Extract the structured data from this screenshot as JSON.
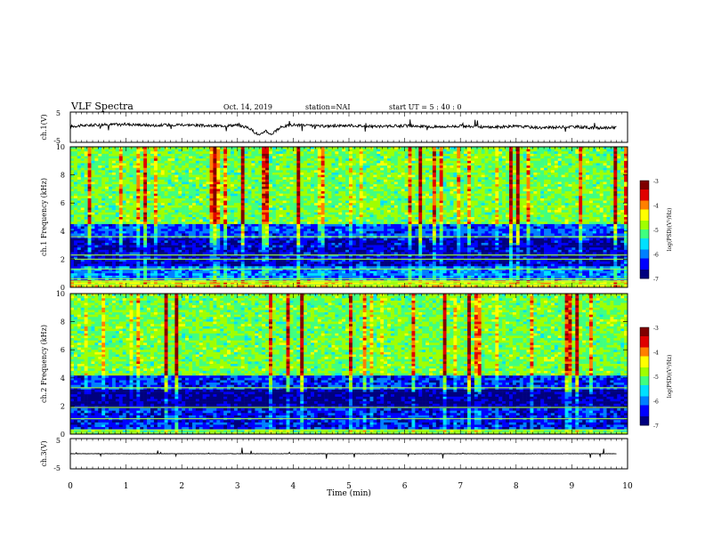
{
  "header": {
    "title": "VLF Spectra",
    "date": "Oct. 14, 2019",
    "station": "station=NAI",
    "start_ut": "start  UT =  5 : 40 : 0"
  },
  "chart_data": [
    {
      "type": "line",
      "panel": "ch1-waveform",
      "ylabel": "ch.1(V)",
      "yticks": [
        "5",
        "-5"
      ],
      "ylim": [
        -5,
        5
      ],
      "x_range_min": [
        0,
        10
      ],
      "series": [
        {
          "x": [
            0,
            0.5,
            1,
            1.5,
            2,
            2.5,
            3,
            3.2,
            3.4,
            3.5,
            3.6,
            3.8,
            4,
            4.5,
            5,
            5.5,
            6,
            6.5,
            7,
            7.5,
            8,
            8.5,
            9,
            9.5,
            9.8
          ],
          "values": [
            0.3,
            0.8,
            1.0,
            0.6,
            0.9,
            0.4,
            0.7,
            -0.2,
            -2.8,
            -1.0,
            -2.4,
            0.2,
            0.8,
            0.3,
            0.6,
            0.2,
            0.5,
            0.1,
            0.4,
            0.0,
            0.3,
            -0.2,
            0.2,
            -0.3,
            0.0
          ]
        }
      ]
    },
    {
      "type": "heatmap",
      "panel": "ch1-spectrogram",
      "ylabel": "ch.1  Frequency (kHz)",
      "xlim": [
        0,
        10
      ],
      "ylim": [
        0,
        10
      ],
      "yticks": [
        "0",
        "2",
        "4",
        "6",
        "8",
        "10"
      ],
      "colorbar": {
        "label": "log(PSD)(V²/Hz)",
        "ticks": [
          "-3",
          "-4",
          "-5",
          "-6",
          "-7"
        ],
        "range": [
          -7,
          -3
        ]
      },
      "bands": [
        {
          "from_khz": 0,
          "to_khz": 0.5,
          "level": -4.5
        },
        {
          "from_khz": 0.5,
          "to_khz": 1.5,
          "level": -6.0
        },
        {
          "from_khz": 1.5,
          "to_khz": 3.5,
          "level": -6.6
        },
        {
          "from_khz": 3.5,
          "to_khz": 4.5,
          "level": -6.2
        },
        {
          "from_khz": 4.5,
          "to_khz": 10,
          "level": -5.0
        }
      ],
      "lines_khz": [
        0.2,
        0.4,
        0.6,
        1.3,
        2.0,
        2.3,
        3.6
      ]
    },
    {
      "type": "heatmap",
      "panel": "ch2-spectrogram",
      "ylabel": "ch.2  Frequency (kHz)",
      "xlim": [
        0,
        10
      ],
      "ylim": [
        0,
        10
      ],
      "yticks": [
        "0",
        "2",
        "4",
        "6",
        "8",
        "10"
      ],
      "colorbar": {
        "label": "log(PSD)(V²/Hz)",
        "ticks": [
          "-3",
          "-4",
          "-5",
          "-6",
          "-7"
        ],
        "range": [
          -7,
          -3
        ]
      },
      "bands": [
        {
          "from_khz": 0,
          "to_khz": 0.4,
          "level": -5.0
        },
        {
          "from_khz": 0.4,
          "to_khz": 1.8,
          "level": -6.4
        },
        {
          "from_khz": 1.8,
          "to_khz": 3.2,
          "level": -6.8
        },
        {
          "from_khz": 3.2,
          "to_khz": 4.2,
          "level": -6.3
        },
        {
          "from_khz": 4.2,
          "to_khz": 10,
          "level": -5.0
        }
      ],
      "lines_khz": [
        0.1,
        0.3,
        1.1,
        1.9,
        3.3
      ]
    },
    {
      "type": "line",
      "panel": "ch3-waveform",
      "ylabel": "ch.3(V)",
      "yticks": [
        "5",
        "-5"
      ],
      "ylim": [
        -5,
        5
      ],
      "series": [
        {
          "x": [
            0,
            9.8
          ],
          "values": [
            0.0,
            0.0
          ]
        }
      ]
    }
  ],
  "x_axis": {
    "label": "Time  (min)",
    "ticks": [
      "0",
      "1",
      "2",
      "3",
      "4",
      "5",
      "6",
      "7",
      "8",
      "9",
      "10"
    ],
    "range": [
      0,
      10
    ]
  },
  "colors": {
    "scale": [
      "#00007f",
      "#0000ff",
      "#0080ff",
      "#00e0ff",
      "#40ff80",
      "#a0ff00",
      "#ffff00",
      "#ff8000",
      "#e00000",
      "#7f0000"
    ]
  }
}
